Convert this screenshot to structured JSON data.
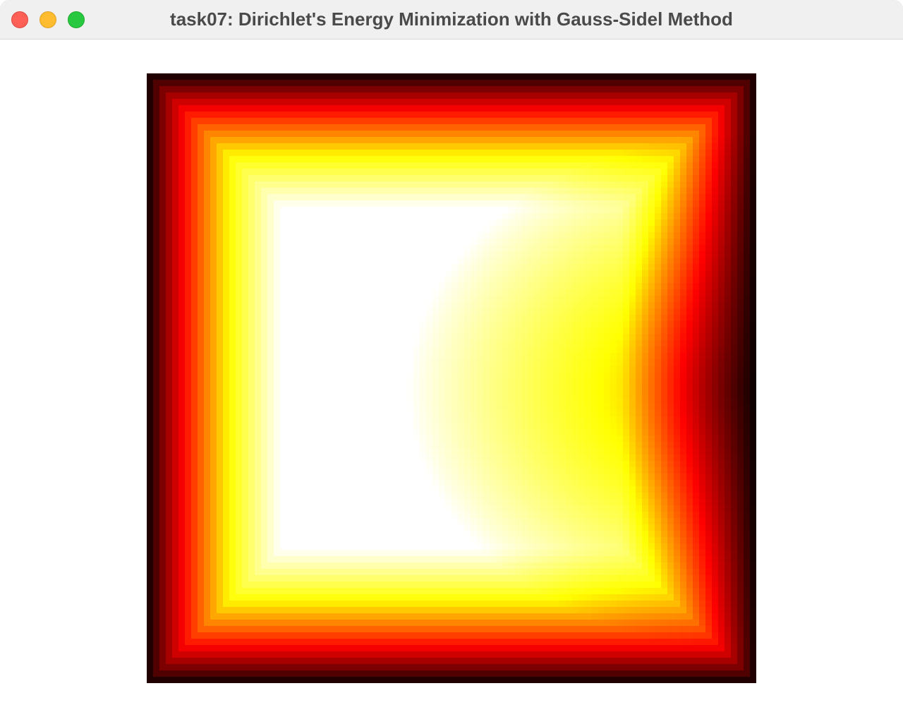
{
  "window": {
    "title": "task07: Dirichlet's Energy Minimization with Gauss-Sidel Method"
  },
  "controls": {
    "close_icon": "close-icon",
    "minimize_icon": "minimize-icon",
    "maximize_icon": "maximize-icon"
  },
  "visualization": {
    "colormap": [
      "#000000",
      "#ff0000",
      "#ffff00",
      "#ffffff"
    ]
  }
}
